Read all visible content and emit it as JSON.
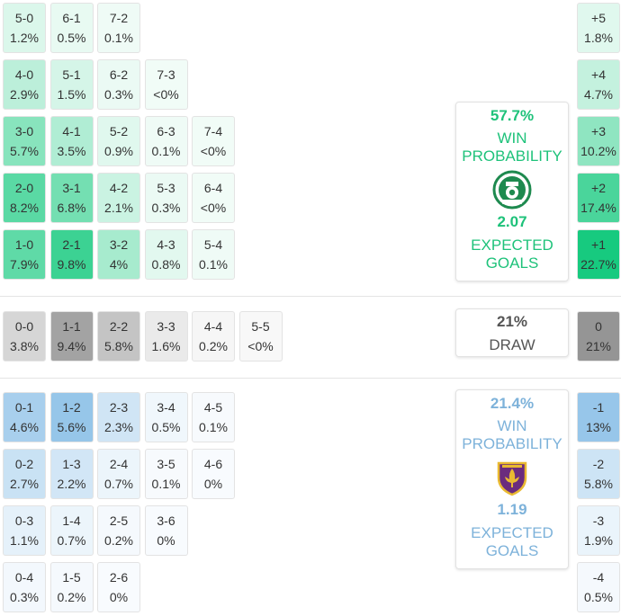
{
  "colors": {
    "home_scale": "#14c97d",
    "draw_scale": "#8c8c8c",
    "away_scale": "#8fc2e8",
    "home_accent": "#1ec27a",
    "away_accent": "#7db2da",
    "draw_text": "#444444"
  },
  "home_card": {
    "win_pct": "57.7%",
    "win_label_1": "WIN",
    "win_label_2": "PROBABILITY",
    "xg": "2.07",
    "xg_label_1": "EXPECTED",
    "xg_label_2": "GOALS",
    "crest_icon": "ferencvaros-crest-icon"
  },
  "draw_card": {
    "pct": "21%",
    "label": "DRAW"
  },
  "away_card": {
    "win_pct": "21.4%",
    "win_label_1": "WIN",
    "win_label_2": "PROBABILITY",
    "xg": "1.19",
    "xg_label_1": "EXPECTED",
    "xg_label_2": "GOALS",
    "crest_icon": "maribor-crest-icon"
  },
  "chart_data": {
    "type": "heatmap",
    "title": "",
    "home_win_rows": [
      [
        {
          "s": "5-0",
          "p": "1.2%",
          "v": 1.2
        },
        {
          "s": "6-1",
          "p": "0.5%",
          "v": 0.5
        },
        {
          "s": "7-2",
          "p": "0.1%",
          "v": 0.1
        }
      ],
      [
        {
          "s": "4-0",
          "p": "2.9%",
          "v": 2.9
        },
        {
          "s": "5-1",
          "p": "1.5%",
          "v": 1.5
        },
        {
          "s": "6-2",
          "p": "0.3%",
          "v": 0.3
        },
        {
          "s": "7-3",
          "p": "<0%",
          "v": 0
        }
      ],
      [
        {
          "s": "3-0",
          "p": "5.7%",
          "v": 5.7
        },
        {
          "s": "4-1",
          "p": "3.5%",
          "v": 3.5
        },
        {
          "s": "5-2",
          "p": "0.9%",
          "v": 0.9
        },
        {
          "s": "6-3",
          "p": "0.1%",
          "v": 0.1
        },
        {
          "s": "7-4",
          "p": "<0%",
          "v": 0
        }
      ],
      [
        {
          "s": "2-0",
          "p": "8.2%",
          "v": 8.2
        },
        {
          "s": "3-1",
          "p": "6.8%",
          "v": 6.8
        },
        {
          "s": "4-2",
          "p": "2.1%",
          "v": 2.1
        },
        {
          "s": "5-3",
          "p": "0.3%",
          "v": 0.3
        },
        {
          "s": "6-4",
          "p": "<0%",
          "v": 0
        }
      ],
      [
        {
          "s": "1-0",
          "p": "7.9%",
          "v": 7.9
        },
        {
          "s": "2-1",
          "p": "9.8%",
          "v": 9.8
        },
        {
          "s": "3-2",
          "p": "4%",
          "v": 4
        },
        {
          "s": "4-3",
          "p": "0.8%",
          "v": 0.8
        },
        {
          "s": "5-4",
          "p": "0.1%",
          "v": 0.1
        }
      ]
    ],
    "draw_row": [
      {
        "s": "0-0",
        "p": "3.8%",
        "v": 3.8
      },
      {
        "s": "1-1",
        "p": "9.4%",
        "v": 9.4
      },
      {
        "s": "2-2",
        "p": "5.8%",
        "v": 5.8
      },
      {
        "s": "3-3",
        "p": "1.6%",
        "v": 1.6
      },
      {
        "s": "4-4",
        "p": "0.2%",
        "v": 0.2
      },
      {
        "s": "5-5",
        "p": "<0%",
        "v": 0
      }
    ],
    "away_win_rows": [
      [
        {
          "s": "0-1",
          "p": "4.6%",
          "v": 4.6
        },
        {
          "s": "1-2",
          "p": "5.6%",
          "v": 5.6
        },
        {
          "s": "2-3",
          "p": "2.3%",
          "v": 2.3
        },
        {
          "s": "3-4",
          "p": "0.5%",
          "v": 0.5
        },
        {
          "s": "4-5",
          "p": "0.1%",
          "v": 0.1
        }
      ],
      [
        {
          "s": "0-2",
          "p": "2.7%",
          "v": 2.7
        },
        {
          "s": "1-3",
          "p": "2.2%",
          "v": 2.2
        },
        {
          "s": "2-4",
          "p": "0.7%",
          "v": 0.7
        },
        {
          "s": "3-5",
          "p": "0.1%",
          "v": 0.1
        },
        {
          "s": "4-6",
          "p": "0%",
          "v": 0
        }
      ],
      [
        {
          "s": "0-3",
          "p": "1.1%",
          "v": 1.1
        },
        {
          "s": "1-4",
          "p": "0.7%",
          "v": 0.7
        },
        {
          "s": "2-5",
          "p": "0.2%",
          "v": 0.2
        },
        {
          "s": "3-6",
          "p": "0%",
          "v": 0
        }
      ],
      [
        {
          "s": "0-4",
          "p": "0.3%",
          "v": 0.3
        },
        {
          "s": "1-5",
          "p": "0.2%",
          "v": 0.2
        },
        {
          "s": "2-6",
          "p": "0%",
          "v": 0
        }
      ]
    ],
    "margins_home": [
      {
        "m": "+5",
        "p": "1.8%",
        "v": 1.8
      },
      {
        "m": "+4",
        "p": "4.7%",
        "v": 4.7
      },
      {
        "m": "+3",
        "p": "10.2%",
        "v": 10.2
      },
      {
        "m": "+2",
        "p": "17.4%",
        "v": 17.4
      },
      {
        "m": "+1",
        "p": "22.7%",
        "v": 22.7
      }
    ],
    "margin_draw": {
      "m": "0",
      "p": "21%",
      "v": 21
    },
    "margins_away": [
      {
        "m": "-1",
        "p": "13%",
        "v": 13
      },
      {
        "m": "-2",
        "p": "5.8%",
        "v": 5.8
      },
      {
        "m": "-3",
        "p": "1.9%",
        "v": 1.9
      },
      {
        "m": "-4",
        "p": "0.5%",
        "v": 0.5
      }
    ]
  }
}
